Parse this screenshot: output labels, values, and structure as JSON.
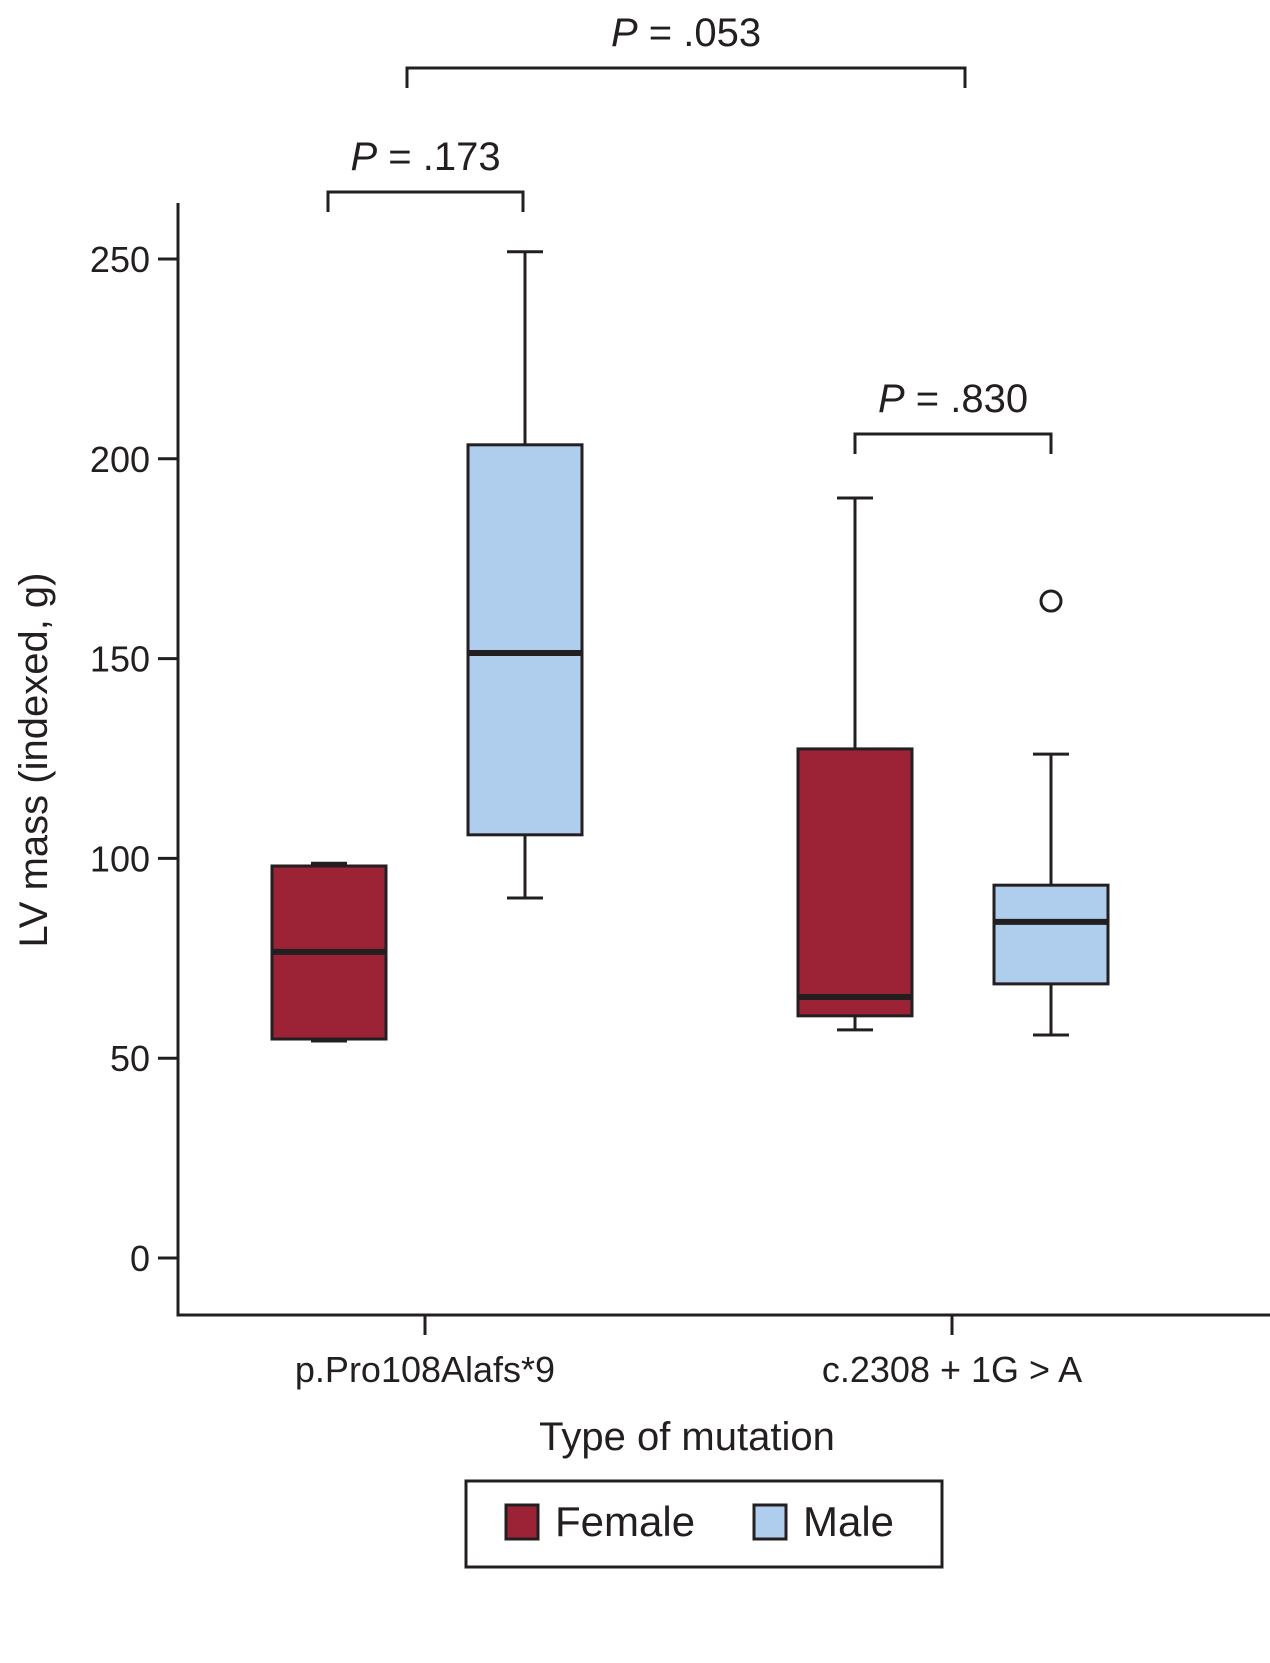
{
  "chart_data": {
    "type": "box",
    "xlabel": "Type of mutation",
    "ylabel": "LV mass (indexed, g)",
    "ylim": [
      -15,
      264
    ],
    "yticks": [
      0,
      50,
      100,
      150,
      200,
      250
    ],
    "categories": [
      "p.Pro108Alafs*9",
      "c.2308 + 1G > A"
    ],
    "grid": false,
    "legend_placement": "bottom",
    "series": [
      {
        "name": "Female",
        "color": "#9b2335",
        "boxes": [
          {
            "whisker_low": 54.3,
            "q1": 54.8,
            "median": 76.6,
            "q3": 98.1,
            "whisker_high": 98.8,
            "outliers": []
          },
          {
            "whisker_low": 57.1,
            "q1": 60.6,
            "median": 65.3,
            "q3": 127.4,
            "whisker_high": 190.2,
            "outliers": []
          }
        ]
      },
      {
        "name": "Male",
        "color": "#afcdec",
        "boxes": [
          {
            "whisker_low": 90.1,
            "q1": 105.9,
            "median": 151.4,
            "q3": 203.5,
            "whisker_high": 251.8,
            "outliers": []
          },
          {
            "whisker_low": 55.8,
            "q1": 68.6,
            "median": 84.1,
            "q3": 93.3,
            "whisker_high": 126.1,
            "outliers": [
              164.4
            ]
          }
        ]
      }
    ],
    "annotations": [
      {
        "p_label": "P",
        "p_value": " = .053",
        "between": [
          "p.Pro108Alafs*9",
          "c.2308 + 1G > A"
        ]
      },
      {
        "p_label": "P",
        "p_value": " = .173",
        "between": [
          "p.Pro108Alafs*9 Female",
          "p.Pro108Alafs*9 Male"
        ]
      },
      {
        "p_label": "P",
        "p_value": " = .830",
        "between": [
          "c.2308 + 1G > A Female",
          "c.2308 + 1G > A Male"
        ]
      }
    ]
  }
}
